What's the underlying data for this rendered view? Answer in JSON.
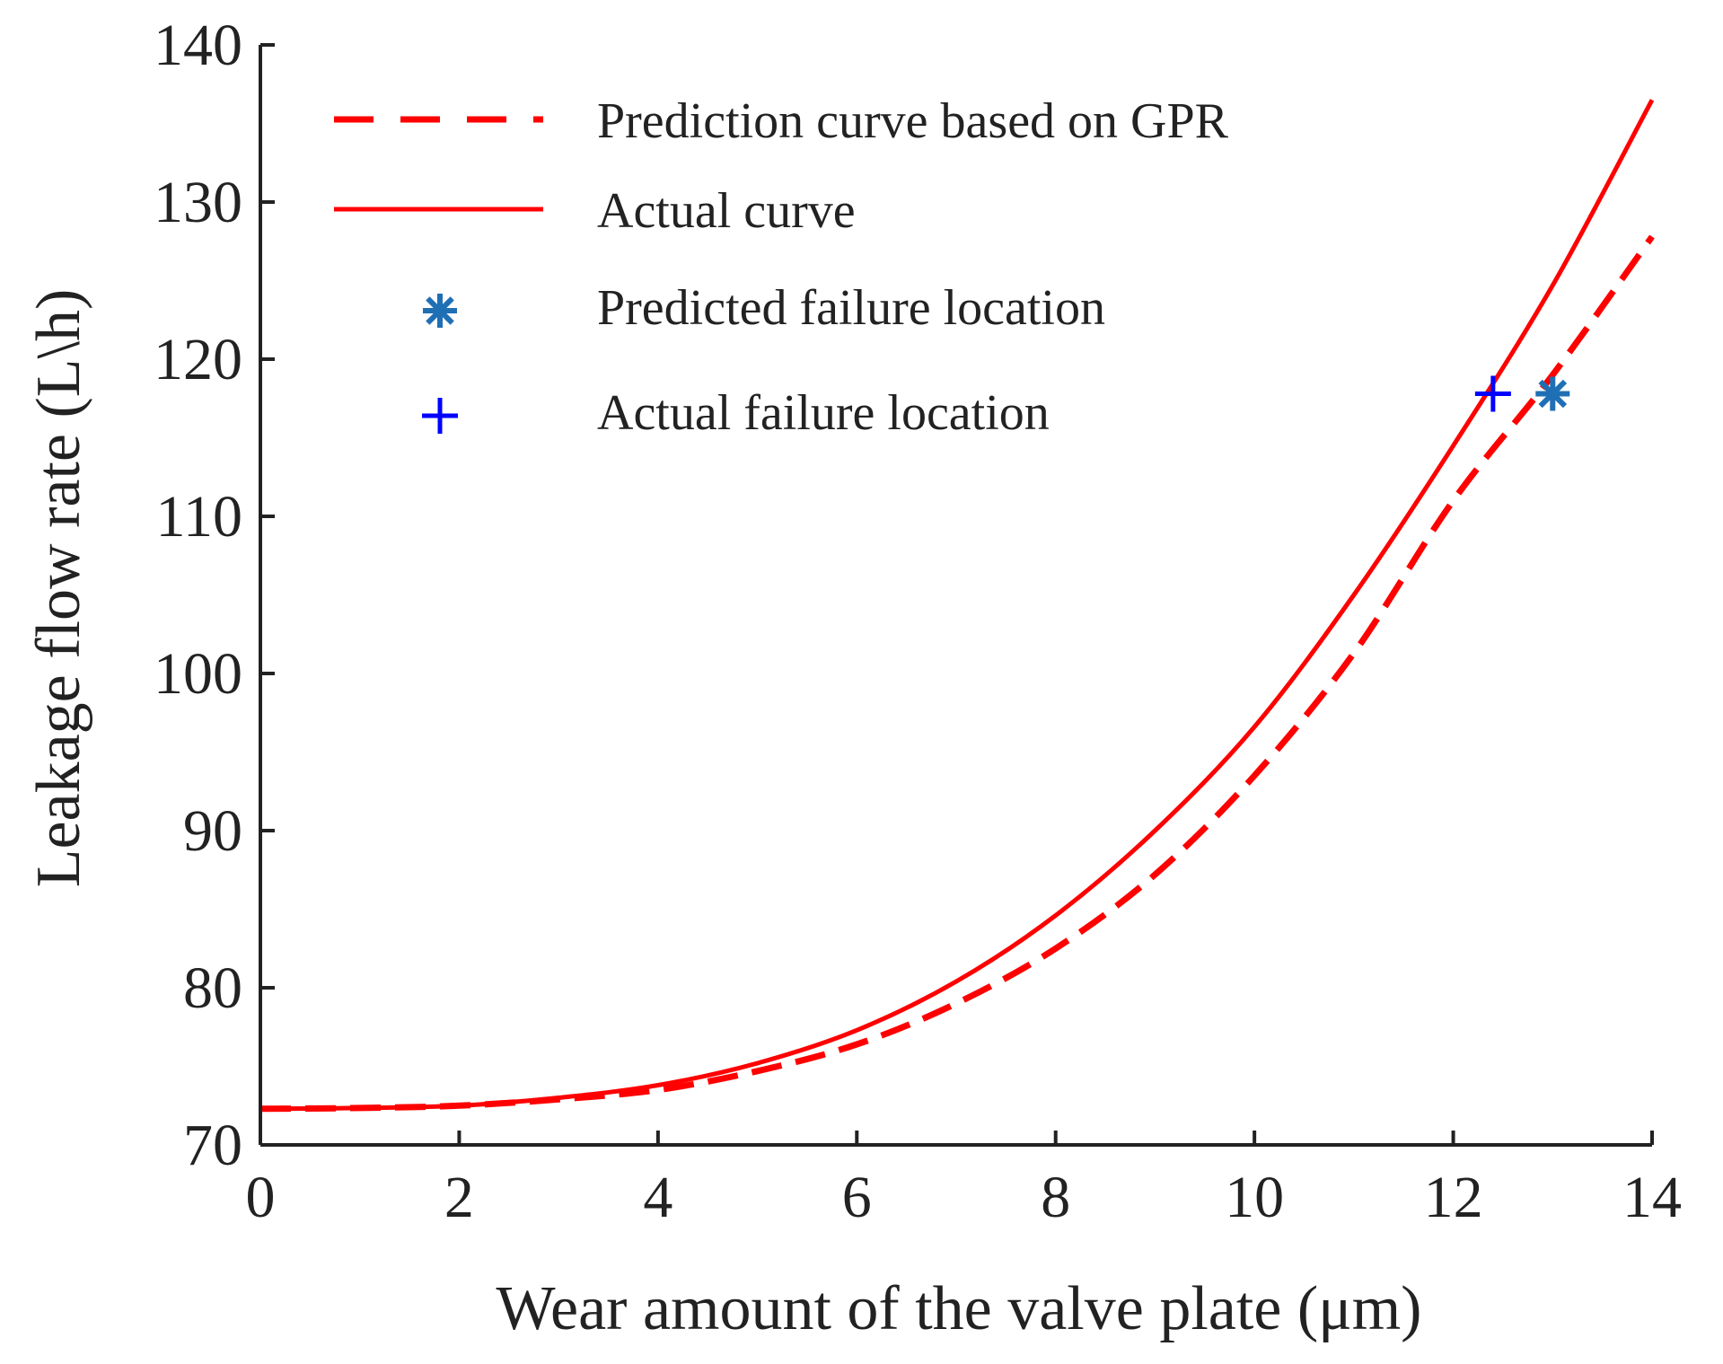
{
  "chart_data": {
    "type": "line",
    "title": "",
    "xlabel": "Wear amount of the valve plate (μm)",
    "ylabel": "Leakage flow rate (L\\h)",
    "xlim": [
      0,
      14
    ],
    "ylim": [
      70,
      140
    ],
    "xticks": [
      0,
      2,
      4,
      6,
      8,
      10,
      12,
      14
    ],
    "yticks": [
      70,
      80,
      90,
      100,
      110,
      120,
      130,
      140
    ],
    "grid": false,
    "legend_position": "top-left",
    "series": [
      {
        "name": "Prediction curve based on GPR",
        "style": "dashed",
        "color": "#ff0000",
        "x": [
          0,
          1,
          2,
          3,
          4,
          5,
          6,
          7,
          8,
          9,
          10,
          11,
          12,
          13,
          14
        ],
        "y": [
          72.3,
          72.35,
          72.5,
          72.9,
          73.5,
          74.7,
          76.4,
          79.0,
          82.5,
          87.2,
          93.5,
          101.3,
          111.0,
          119.0,
          127.8
        ]
      },
      {
        "name": "Actual curve",
        "style": "solid",
        "color": "#ff0000",
        "x": [
          0,
          1,
          2,
          3,
          4,
          5,
          6,
          7,
          8,
          9,
          10,
          11,
          12,
          13,
          14
        ],
        "y": [
          72.3,
          72.35,
          72.5,
          73.0,
          73.8,
          75.2,
          77.3,
          80.4,
          84.6,
          90.0,
          96.6,
          105.0,
          114.5,
          124.7,
          136.5
        ]
      },
      {
        "name": "Predicted failure location",
        "style": "marker",
        "marker": "asterisk",
        "color": "#1f6fb5",
        "x": [
          13.0
        ],
        "y": [
          117.8
        ]
      },
      {
        "name": "Actual failure location",
        "style": "marker",
        "marker": "plus",
        "color": "#0000ff",
        "x": [
          12.4
        ],
        "y": [
          117.8
        ]
      }
    ]
  }
}
